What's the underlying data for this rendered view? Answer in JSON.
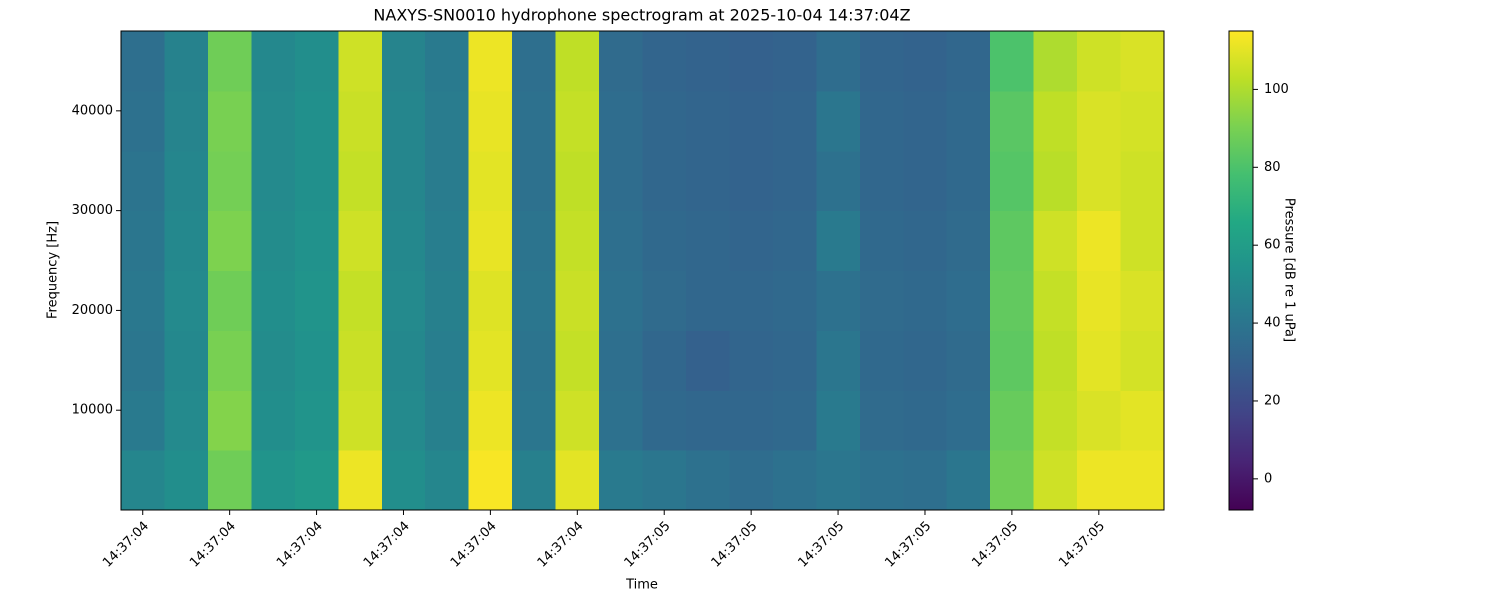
{
  "chart_data": {
    "type": "heatmap",
    "title": "NAXYS-SN0010 hydrophone spectrogram at 2025-10-04 14:37:04Z",
    "x_label": "Time",
    "y_label": "Frequency [Hz]",
    "colorbar_label": "Pressure [dB re 1 uPa]",
    "colormap": "viridis",
    "x": [
      4.4,
      4.45,
      4.5,
      4.55,
      4.6,
      4.65,
      4.7,
      4.75,
      4.8,
      4.85,
      4.9,
      4.95,
      5.0,
      5.05,
      5.1,
      5.15,
      5.2,
      5.25,
      5.3,
      5.35,
      5.4,
      5.45,
      5.5,
      5.55
    ],
    "y": [
      3000,
      9000,
      15000,
      21000,
      27000,
      33000,
      39000,
      45000
    ],
    "z": [
      [
        48,
        52,
        88,
        55,
        58,
        112,
        52,
        48,
        114,
        45,
        110,
        42,
        40,
        38,
        36,
        38,
        40,
        38,
        37,
        40,
        88,
        106,
        112,
        112
      ],
      [
        42,
        50,
        92,
        52,
        55,
        106,
        50,
        45,
        112,
        40,
        106,
        38,
        34,
        33,
        33,
        34,
        42,
        35,
        34,
        36,
        86,
        104,
        108,
        110
      ],
      [
        40,
        49,
        90,
        51,
        54,
        105,
        49,
        44,
        110,
        39,
        104,
        37,
        33,
        30,
        32,
        33,
        40,
        34,
        33,
        35,
        84,
        103,
        110,
        107
      ],
      [
        41,
        50,
        88,
        52,
        55,
        104,
        50,
        45,
        109,
        40,
        105,
        38,
        35,
        33,
        33,
        34,
        38,
        35,
        34,
        36,
        85,
        104,
        111,
        108
      ],
      [
        40,
        49,
        91,
        51,
        54,
        106,
        49,
        44,
        111,
        39,
        104,
        37,
        34,
        33,
        32,
        33,
        42,
        34,
        33,
        35,
        84,
        106,
        112,
        106
      ],
      [
        39,
        48,
        89,
        50,
        53,
        104,
        48,
        43,
        110,
        38,
        103,
        36,
        33,
        32,
        31,
        32,
        38,
        33,
        32,
        34,
        82,
        102,
        108,
        106
      ],
      [
        38,
        47,
        90,
        50,
        53,
        105,
        48,
        43,
        111,
        38,
        104,
        36,
        33,
        32,
        31,
        32,
        40,
        33,
        32,
        34,
        83,
        103,
        108,
        107
      ],
      [
        37,
        46,
        88,
        49,
        52,
        106,
        47,
        42,
        112,
        37,
        103,
        35,
        32,
        31,
        30,
        31,
        36,
        32,
        31,
        33,
        80,
        100,
        106,
        108
      ]
    ],
    "xlim": [
      4.375,
      5.575
    ],
    "ylim": [
      0,
      48000
    ],
    "clim": [
      -8,
      115
    ],
    "xticks": [
      {
        "value": 4.4,
        "label": "14:37:04"
      },
      {
        "value": 4.5,
        "label": "14:37:04"
      },
      {
        "value": 4.6,
        "label": "14:37:04"
      },
      {
        "value": 4.7,
        "label": "14:37:04"
      },
      {
        "value": 4.8,
        "label": "14:37:04"
      },
      {
        "value": 4.9,
        "label": "14:37:04"
      },
      {
        "value": 5.0,
        "label": "14:37:05"
      },
      {
        "value": 5.1,
        "label": "14:37:05"
      },
      {
        "value": 5.2,
        "label": "14:37:05"
      },
      {
        "value": 5.3,
        "label": "14:37:05"
      },
      {
        "value": 5.4,
        "label": "14:37:05"
      },
      {
        "value": 5.5,
        "label": "14:37:05"
      }
    ],
    "yticks": [
      10000,
      20000,
      30000,
      40000
    ],
    "cticks": [
      0,
      20,
      40,
      60,
      80,
      100
    ]
  }
}
